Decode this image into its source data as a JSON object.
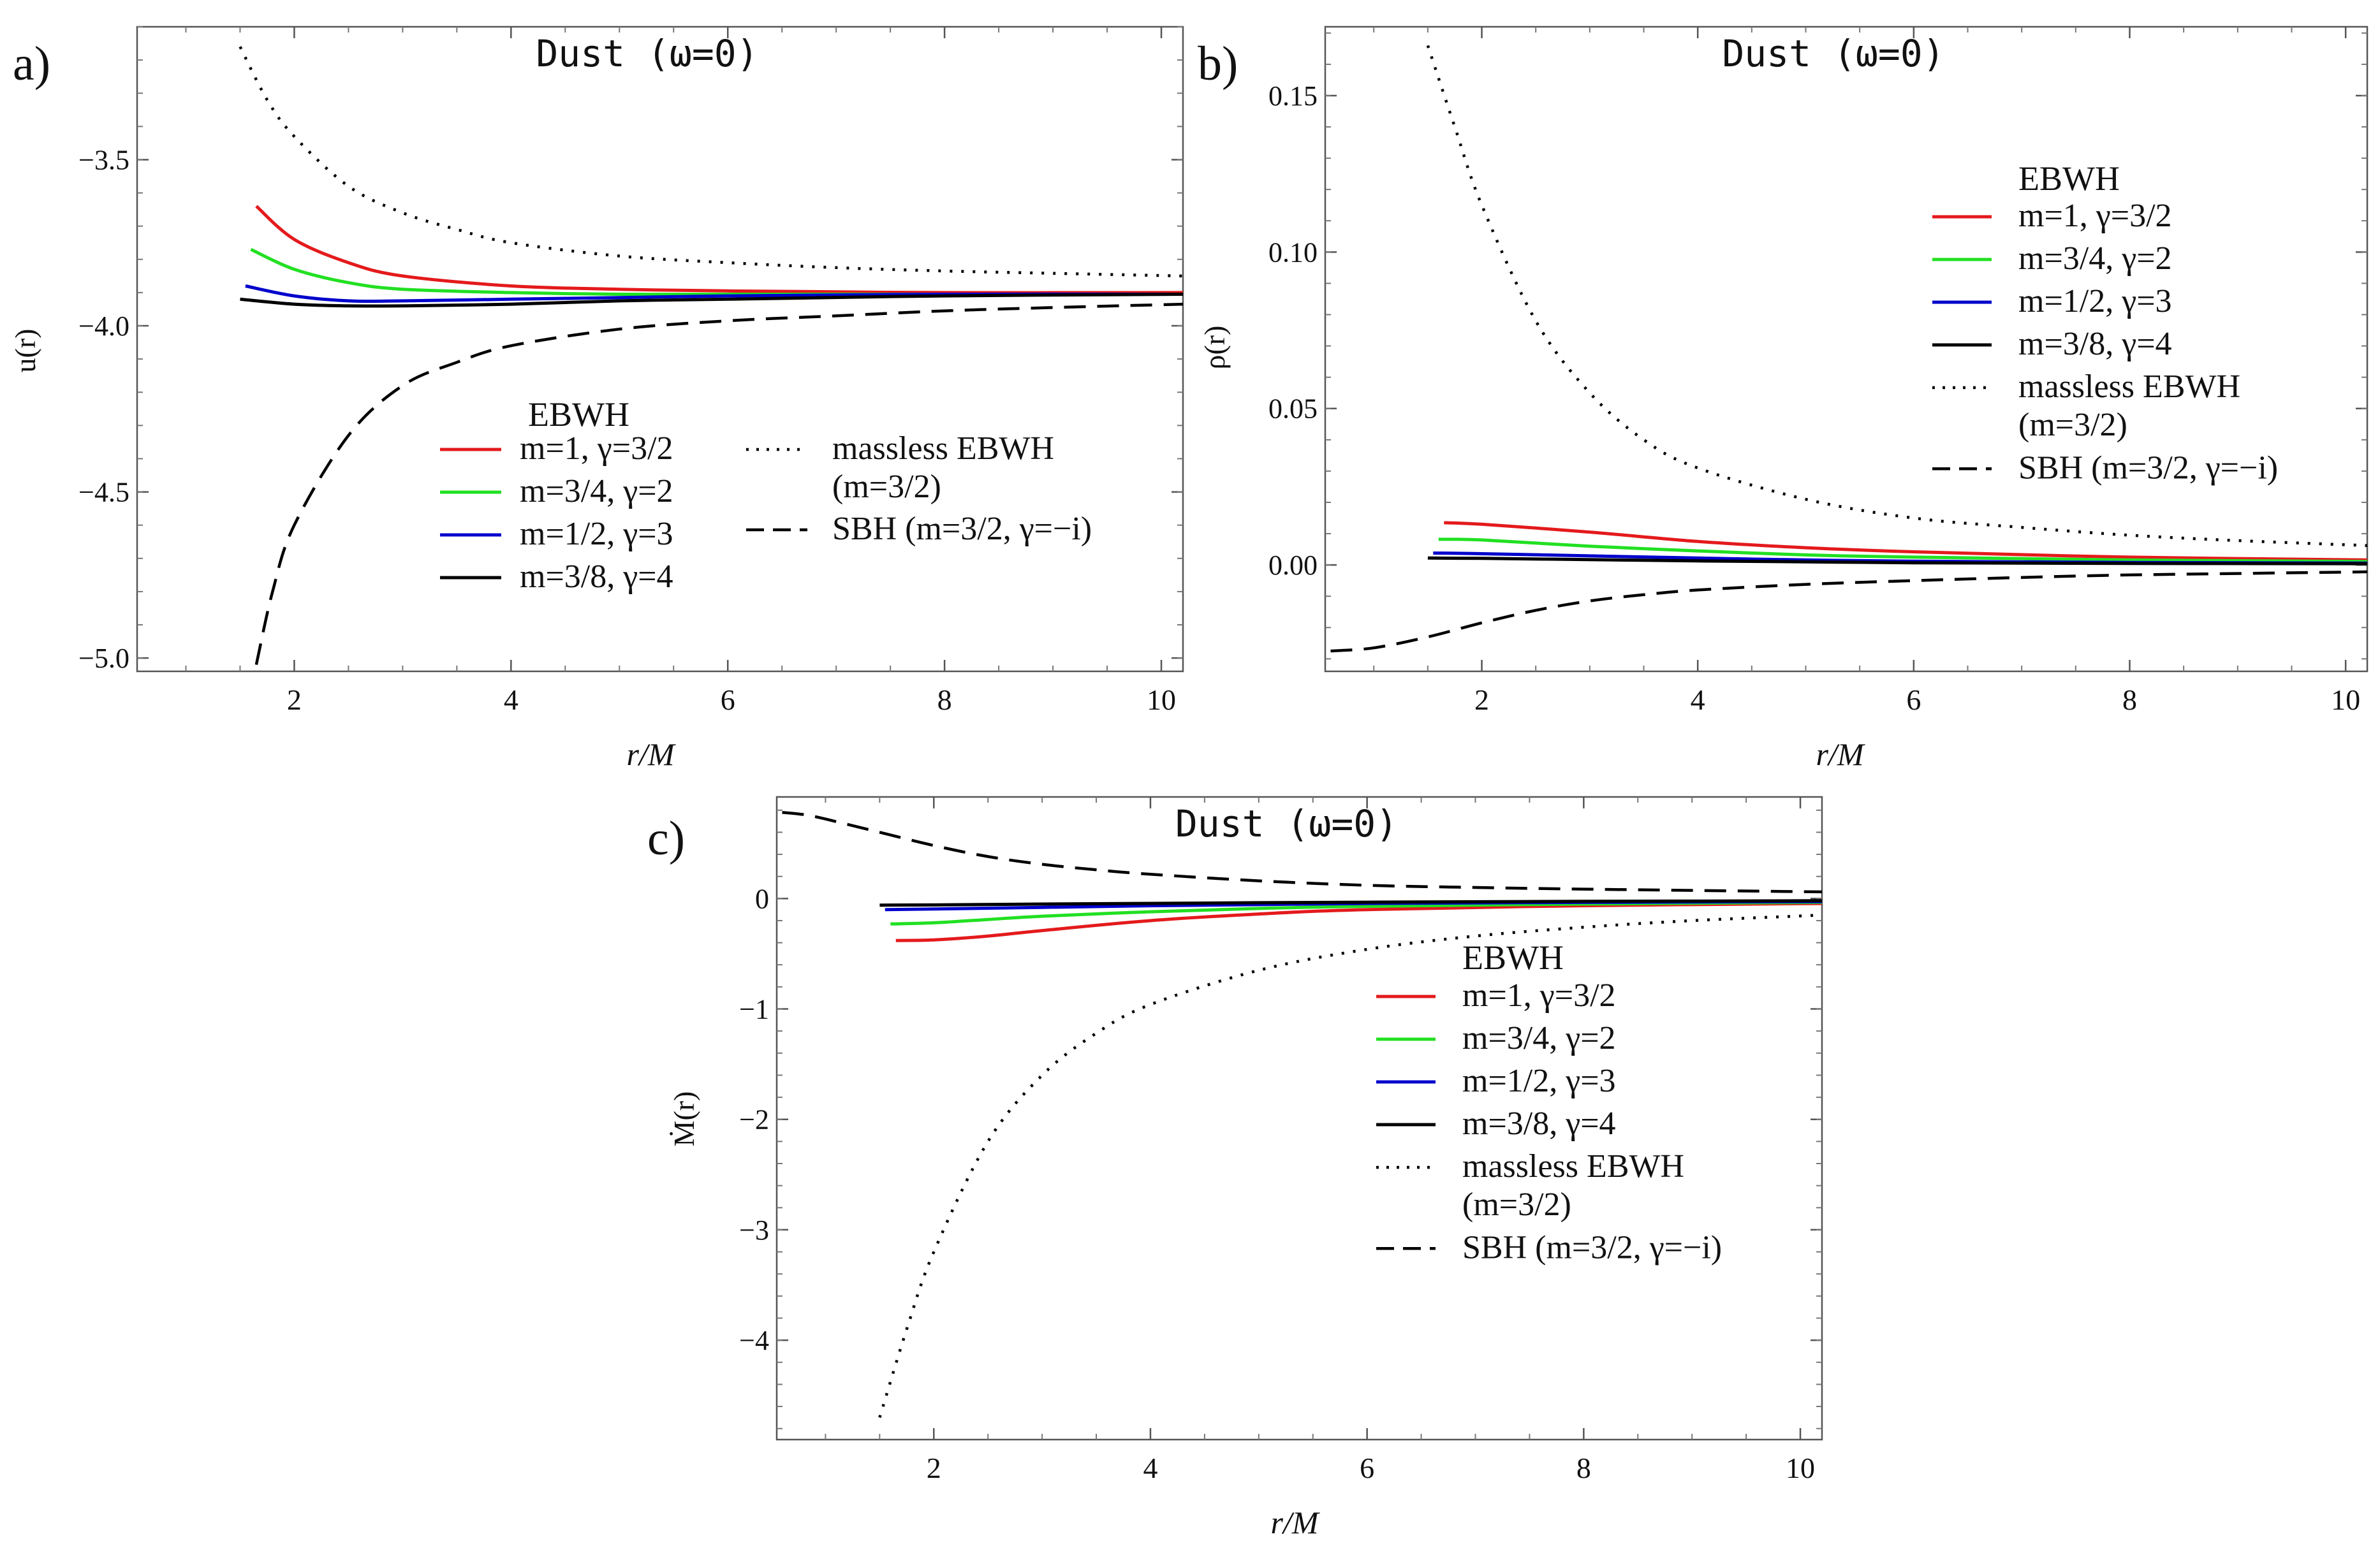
{
  "figure": {
    "charts": [
      {
        "panel_label": "a)",
        "title": "Dust (ω=0)",
        "xlabel": "r/M",
        "ylabel": "u(r)",
        "legend_header": "EBWH"
      },
      {
        "panel_label": "b)",
        "title": "Dust (ω=0)",
        "xlabel": "r/M",
        "ylabel": "ρ(r)",
        "legend_header": "EBWH"
      },
      {
        "panel_label": "c)",
        "title": "Dust (ω=0)",
        "xlabel": "r/M",
        "ylabel": "Ṁ(r)",
        "legend_header": "EBWH"
      }
    ]
  },
  "chart_data": [
    {
      "type": "line",
      "panel": "a)",
      "title": "Dust (ω=0)",
      "xlabel": "r/M",
      "ylabel": "u(r)",
      "xlim": [
        0.55,
        10.2
      ],
      "ylim": [
        -5.04,
        -3.1
      ],
      "xticks": [
        2,
        4,
        6,
        8,
        10
      ],
      "xtick_labels": [
        "2",
        "4",
        "6",
        "8",
        "10"
      ],
      "yticks": [
        -5.0,
        -4.5,
        -4.0,
        -3.5
      ],
      "ytick_labels": [
        "−5.0",
        "−4.5",
        "−4.0",
        "−3.5"
      ],
      "grid": false,
      "legend_placement": "bottom-center",
      "legend_header": "EBWH",
      "series": [
        {
          "name": "m=1, γ=3/2",
          "color": "#e41a1c",
          "dash": "solid",
          "x": [
            1.65,
            2.0,
            2.5,
            3.0,
            4.0,
            5.0,
            6.0,
            8.0,
            10.2
          ],
          "y": [
            -3.64,
            -3.74,
            -3.81,
            -3.85,
            -3.88,
            -3.89,
            -3.895,
            -3.9,
            -3.9
          ]
        },
        {
          "name": "m=3/4, γ=2",
          "color": "#22e022",
          "dash": "solid",
          "x": [
            1.6,
            2.0,
            2.5,
            3.0,
            4.0,
            5.0,
            6.0,
            8.0,
            10.2
          ],
          "y": [
            -3.77,
            -3.83,
            -3.87,
            -3.89,
            -3.9,
            -3.905,
            -3.905,
            -3.905,
            -3.905
          ]
        },
        {
          "name": "m=1/2, γ=3",
          "color": "#0000cc",
          "dash": "solid",
          "x": [
            1.55,
            2.0,
            2.5,
            3.0,
            4.0,
            5.0,
            6.0,
            8.0,
            10.2
          ],
          "y": [
            -3.88,
            -3.91,
            -3.925,
            -3.925,
            -3.92,
            -3.915,
            -3.91,
            -3.905,
            -3.905
          ]
        },
        {
          "name": "m=3/8, γ=4",
          "color": "#000000",
          "dash": "solid",
          "x": [
            1.5,
            2.0,
            2.5,
            3.0,
            4.0,
            5.0,
            6.0,
            8.0,
            10.2
          ],
          "y": [
            -3.92,
            -3.935,
            -3.94,
            -3.94,
            -3.935,
            -3.925,
            -3.92,
            -3.91,
            -3.905
          ]
        },
        {
          "name": "massless EBWH (m=3/2)",
          "color": "#000000",
          "dash": "dotted",
          "x": [
            1.5,
            1.75,
            2.0,
            2.5,
            3.0,
            3.5,
            4.0,
            5.0,
            6.0,
            7.0,
            8.0,
            9.0,
            10.2
          ],
          "y": [
            -3.16,
            -3.32,
            -3.43,
            -3.58,
            -3.66,
            -3.71,
            -3.75,
            -3.79,
            -3.81,
            -3.825,
            -3.835,
            -3.842,
            -3.85
          ]
        },
        {
          "name": "SBH (m=3/2, γ=−i)",
          "color": "#000000",
          "dash": "dashed",
          "x": [
            1.65,
            1.8,
            2.0,
            2.5,
            3.0,
            3.5,
            4.0,
            5.0,
            6.0,
            7.0,
            8.0,
            9.0,
            10.2
          ],
          "y": [
            -5.02,
            -4.8,
            -4.6,
            -4.33,
            -4.18,
            -4.11,
            -4.06,
            -4.01,
            -3.985,
            -3.97,
            -3.955,
            -3.945,
            -3.935
          ]
        }
      ]
    },
    {
      "type": "line",
      "panel": "b)",
      "title": "Dust (ω=0)",
      "xlabel": "r/M",
      "ylabel": "ρ(r)",
      "xlim": [
        0.55,
        10.2
      ],
      "ylim": [
        -0.034,
        0.172
      ],
      "xticks": [
        2,
        4,
        6,
        8,
        10
      ],
      "xtick_labels": [
        "2",
        "4",
        "6",
        "8",
        "10"
      ],
      "yticks": [
        0.0,
        0.05,
        0.1,
        0.15
      ],
      "ytick_labels": [
        "0.00",
        "0.05",
        "0.10",
        "0.15"
      ],
      "grid": false,
      "legend_placement": "right",
      "legend_header": "EBWH",
      "series": [
        {
          "name": "m=1, γ=3/2",
          "color": "#e41a1c",
          "dash": "solid",
          "x": [
            1.65,
            2.0,
            3.0,
            4.0,
            5.0,
            6.0,
            8.0,
            10.2
          ],
          "y": [
            0.0135,
            0.013,
            0.0105,
            0.0075,
            0.0055,
            0.0042,
            0.0025,
            0.0016
          ]
        },
        {
          "name": "m=3/4, γ=2",
          "color": "#22e022",
          "dash": "solid",
          "x": [
            1.6,
            2.0,
            3.0,
            4.0,
            5.0,
            6.0,
            8.0,
            10.2
          ],
          "y": [
            0.0082,
            0.008,
            0.006,
            0.0045,
            0.0032,
            0.0025,
            0.0016,
            0.0011
          ]
        },
        {
          "name": "m=1/2, γ=3",
          "color": "#0000cc",
          "dash": "solid",
          "x": [
            1.55,
            2.0,
            3.0,
            4.0,
            5.0,
            6.0,
            8.0,
            10.2
          ],
          "y": [
            0.0038,
            0.0036,
            0.0029,
            0.0022,
            0.0016,
            0.0012,
            0.0008,
            0.0006
          ]
        },
        {
          "name": "m=3/8, γ=4",
          "color": "#000000",
          "dash": "solid",
          "x": [
            1.5,
            2.0,
            3.0,
            4.0,
            5.0,
            6.0,
            8.0,
            10.2
          ],
          "y": [
            0.0022,
            0.0021,
            0.0017,
            0.0013,
            0.001,
            0.0007,
            0.0005,
            0.0004
          ]
        },
        {
          "name": "massless EBWH (m=3/2)",
          "color": "#000000",
          "dash": "dotted",
          "x": [
            1.5,
            1.75,
            2.0,
            2.5,
            3.0,
            3.5,
            4.0,
            5.0,
            6.0,
            7.0,
            8.0,
            9.0,
            10.2
          ],
          "y": [
            0.166,
            0.14,
            0.115,
            0.078,
            0.055,
            0.04,
            0.031,
            0.021,
            0.015,
            0.012,
            0.0095,
            0.0078,
            0.0062
          ]
        },
        {
          "name": "SBH (m=3/2, γ=−i)",
          "color": "#000000",
          "dash": "dashed",
          "x": [
            0.6,
            1.0,
            1.5,
            2.0,
            2.5,
            3.0,
            3.5,
            4.0,
            5.0,
            6.0,
            7.0,
            8.0,
            10.2
          ],
          "y": [
            -0.0275,
            -0.0265,
            -0.023,
            -0.0185,
            -0.0145,
            -0.0115,
            -0.0095,
            -0.008,
            -0.0062,
            -0.005,
            -0.004,
            -0.0032,
            -0.0022
          ]
        }
      ]
    },
    {
      "type": "line",
      "panel": "c)",
      "title": "Dust (ω=0)",
      "xlabel": "r/M",
      "ylabel": "Ṁ(r)",
      "xlim": [
        0.55,
        10.2
      ],
      "ylim": [
        -4.9,
        0.92
      ],
      "xticks": [
        2,
        4,
        6,
        8,
        10
      ],
      "xtick_labels": [
        "2",
        "4",
        "6",
        "8",
        "10"
      ],
      "yticks": [
        -4,
        -3,
        -2,
        -1,
        0
      ],
      "ytick_labels": [
        "−4",
        "−3",
        "−2",
        "−1",
        "0"
      ],
      "grid": false,
      "legend_placement": "right",
      "legend_header": "EBWH",
      "series": [
        {
          "name": "m=1, γ=3/2",
          "color": "#e41a1c",
          "dash": "solid",
          "x": [
            1.65,
            2.0,
            2.5,
            3.0,
            4.0,
            5.0,
            6.0,
            8.0,
            10.2
          ],
          "y": [
            -0.38,
            -0.375,
            -0.34,
            -0.29,
            -0.2,
            -0.14,
            -0.1,
            -0.065,
            -0.045
          ]
        },
        {
          "name": "m=3/4, γ=2",
          "color": "#22e022",
          "dash": "solid",
          "x": [
            1.6,
            2.0,
            2.5,
            3.0,
            4.0,
            5.0,
            6.0,
            8.0,
            10.2
          ],
          "y": [
            -0.23,
            -0.22,
            -0.19,
            -0.16,
            -0.12,
            -0.09,
            -0.07,
            -0.05,
            -0.035
          ]
        },
        {
          "name": "m=1/2, γ=3",
          "color": "#0000cc",
          "dash": "solid",
          "x": [
            1.55,
            2.0,
            3.0,
            4.0,
            5.0,
            6.0,
            8.0,
            10.2
          ],
          "y": [
            -0.1,
            -0.095,
            -0.08,
            -0.065,
            -0.055,
            -0.045,
            -0.035,
            -0.028
          ]
        },
        {
          "name": "m=3/8, γ=4",
          "color": "#000000",
          "dash": "solid",
          "x": [
            1.5,
            2.0,
            3.0,
            4.0,
            5.0,
            6.0,
            8.0,
            10.2
          ],
          "y": [
            -0.06,
            -0.058,
            -0.05,
            -0.044,
            -0.038,
            -0.033,
            -0.026,
            -0.02
          ]
        },
        {
          "name": "massless EBWH (m=3/2)",
          "color": "#000000",
          "dash": "dotted",
          "x": [
            1.5,
            1.75,
            2.0,
            2.5,
            3.0,
            3.5,
            4.0,
            5.0,
            6.0,
            7.0,
            8.0,
            9.0,
            10.2
          ],
          "y": [
            -4.7,
            -3.9,
            -3.2,
            -2.2,
            -1.6,
            -1.22,
            -0.96,
            -0.65,
            -0.46,
            -0.34,
            -0.26,
            -0.2,
            -0.15
          ]
        },
        {
          "name": "SBH (m=3/2, γ=−i)",
          "color": "#000000",
          "dash": "dashed",
          "x": [
            0.6,
            0.8,
            1.0,
            1.5,
            2.0,
            2.5,
            3.0,
            3.5,
            4.0,
            5.0,
            6.0,
            7.0,
            8.0,
            10.2
          ],
          "y": [
            0.78,
            0.76,
            0.72,
            0.6,
            0.48,
            0.38,
            0.31,
            0.26,
            0.22,
            0.16,
            0.12,
            0.1,
            0.085,
            0.06
          ]
        }
      ]
    }
  ]
}
